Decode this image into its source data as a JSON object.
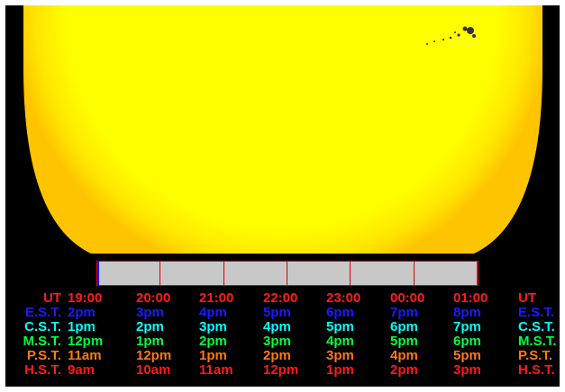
{
  "colors": {
    "background": "#000000",
    "sun_core": "#ffff00",
    "sun_limb": "#ffc400",
    "timeline_fill": "#c8c8c8",
    "timeline_border": "#e00000",
    "marker": "#1010ff",
    "ut": "#ff1a1a",
    "est": "#1a1aff",
    "cst": "#00ffff",
    "mst": "#00ff40",
    "pst": "#ff7a10",
    "hst": "#ff1a1a"
  },
  "timeline": {
    "segments": 6,
    "progress": 0.0
  },
  "rows": [
    {
      "key": "ut",
      "label": "UT",
      "times": [
        "19:00",
        "20:00",
        "21:00",
        "22:00",
        "23:00",
        "00:00",
        "01:00"
      ]
    },
    {
      "key": "est",
      "label": "E.S.T.",
      "times": [
        "2pm",
        "3pm",
        "4pm",
        "5pm",
        "6pm",
        "7pm",
        "8pm"
      ]
    },
    {
      "key": "cst",
      "label": "C.S.T.",
      "times": [
        "1pm",
        "2pm",
        "3pm",
        "4pm",
        "5pm",
        "6pm",
        "7pm"
      ]
    },
    {
      "key": "mst",
      "label": "M.S.T.",
      "times": [
        "12pm",
        "1pm",
        "2pm",
        "3pm",
        "4pm",
        "5pm",
        "6pm"
      ]
    },
    {
      "key": "pst",
      "label": "P.S.T.",
      "times": [
        "11am",
        "12pm",
        "1pm",
        "2pm",
        "3pm",
        "4pm",
        "5pm"
      ]
    },
    {
      "key": "hst",
      "label": "H.S.T.",
      "times": [
        "9am",
        "10am",
        "11am",
        "12pm",
        "1pm",
        "2pm",
        "3pm"
      ]
    }
  ]
}
